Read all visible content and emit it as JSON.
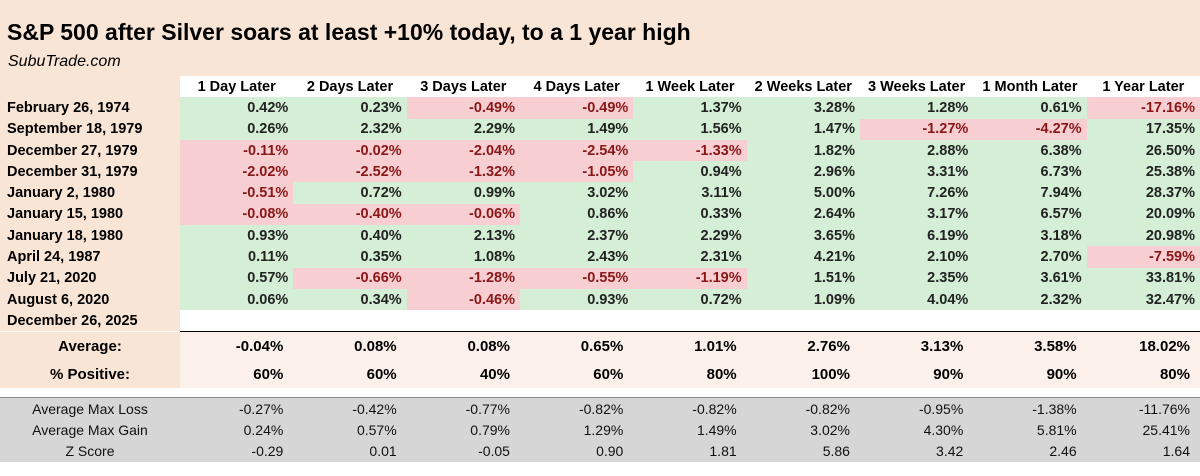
{
  "header": {
    "title": "S&P 500 after Silver soars at least +10% today, to a 1 year high",
    "source": "SubuTrade.com"
  },
  "columns": [
    "1 Day Later",
    "2 Days Later",
    "3 Days Later",
    "4 Days Later",
    "1 Week Later",
    "2 Weeks Later",
    "3 Weeks Later",
    "1 Month Later",
    "1 Year Later"
  ],
  "rows": [
    {
      "date": "February 26, 1974",
      "values": [
        "0.42%",
        "0.23%",
        "-0.49%",
        "-0.49%",
        "1.37%",
        "3.28%",
        "1.28%",
        "0.61%",
        "-17.16%"
      ]
    },
    {
      "date": "September 18, 1979",
      "values": [
        "0.26%",
        "2.32%",
        "2.29%",
        "1.49%",
        "1.56%",
        "1.47%",
        "-1.27%",
        "-4.27%",
        "17.35%"
      ]
    },
    {
      "date": "December 27, 1979",
      "values": [
        "-0.11%",
        "-0.02%",
        "-2.04%",
        "-2.54%",
        "-1.33%",
        "1.82%",
        "2.88%",
        "6.38%",
        "26.50%"
      ]
    },
    {
      "date": "December 31, 1979",
      "values": [
        "-2.02%",
        "-2.52%",
        "-1.32%",
        "-1.05%",
        "0.94%",
        "2.96%",
        "3.31%",
        "6.73%",
        "25.38%"
      ]
    },
    {
      "date": "January 2, 1980",
      "values": [
        "-0.51%",
        "0.72%",
        "0.99%",
        "3.02%",
        "3.11%",
        "5.00%",
        "7.26%",
        "7.94%",
        "28.37%"
      ]
    },
    {
      "date": "January 15, 1980",
      "values": [
        "-0.08%",
        "-0.40%",
        "-0.06%",
        "0.86%",
        "0.33%",
        "2.64%",
        "3.17%",
        "6.57%",
        "20.09%"
      ]
    },
    {
      "date": "January 18, 1980",
      "values": [
        "0.93%",
        "0.40%",
        "2.13%",
        "2.37%",
        "2.29%",
        "3.65%",
        "6.19%",
        "3.18%",
        "20.98%"
      ]
    },
    {
      "date": "April 24, 1987",
      "values": [
        "0.11%",
        "0.35%",
        "1.08%",
        "2.43%",
        "2.31%",
        "4.21%",
        "2.10%",
        "2.70%",
        "-7.59%"
      ]
    },
    {
      "date": "July 21, 2020",
      "values": [
        "0.57%",
        "-0.66%",
        "-1.28%",
        "-0.55%",
        "-1.19%",
        "1.51%",
        "2.35%",
        "3.61%",
        "33.81%"
      ]
    },
    {
      "date": "August 6, 2020",
      "values": [
        "0.06%",
        "0.34%",
        "-0.46%",
        "0.93%",
        "0.72%",
        "1.09%",
        "4.04%",
        "2.32%",
        "32.47%"
      ]
    },
    {
      "date": "December 26, 2025",
      "values": [
        "",
        "",
        "",
        "",
        "",
        "",
        "",
        "",
        ""
      ]
    }
  ],
  "summary": [
    {
      "label": "Average:",
      "values": [
        "-0.04%",
        "0.08%",
        "0.08%",
        "0.65%",
        "1.01%",
        "2.76%",
        "3.13%",
        "3.58%",
        "18.02%"
      ]
    },
    {
      "label": "% Positive:",
      "values": [
        "60%",
        "60%",
        "40%",
        "60%",
        "80%",
        "100%",
        "90%",
        "90%",
        "80%"
      ]
    }
  ],
  "stats": [
    {
      "label": "Average Max Loss",
      "values": [
        "-0.27%",
        "-0.42%",
        "-0.77%",
        "-0.82%",
        "-0.82%",
        "-0.82%",
        "-0.95%",
        "-1.38%",
        "-11.76%"
      ]
    },
    {
      "label": "Average Max Gain",
      "values": [
        "0.24%",
        "0.57%",
        "0.79%",
        "1.29%",
        "1.49%",
        "3.02%",
        "4.30%",
        "5.81%",
        "25.41%"
      ]
    },
    {
      "label": "Z Score",
      "values": [
        "-0.29",
        "0.01",
        "-0.05",
        "0.90",
        "1.81",
        "5.86",
        "3.42",
        "2.46",
        "1.64"
      ]
    }
  ],
  "colors": {
    "header_bg": "#f9e5d6",
    "positive_cell": "#d4efd6",
    "negative_cell": "#f7cfd2",
    "negative_text": "#8a1717",
    "stats_bg": "#d6d6d6"
  }
}
